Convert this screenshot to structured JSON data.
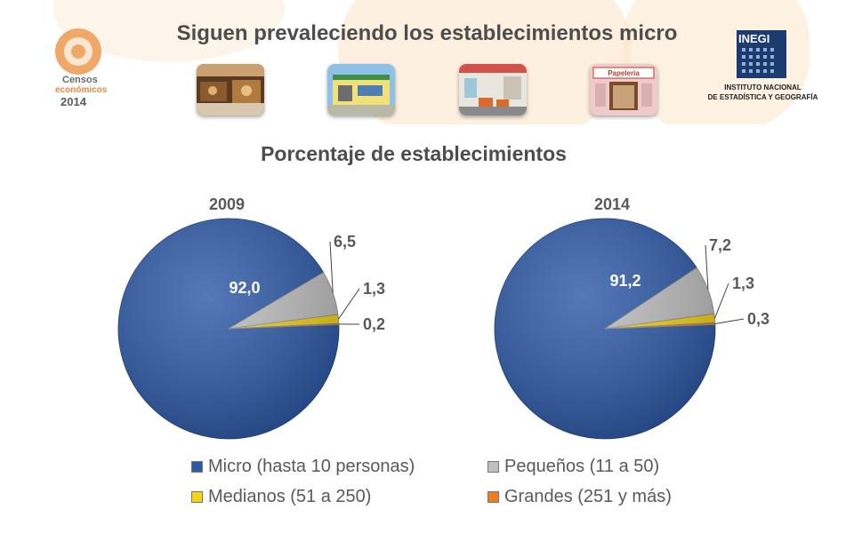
{
  "header": {
    "title": "Siguen prevaleciendo los establecimientos micro"
  },
  "logos": {
    "censos": {
      "line1": "Censos",
      "line2": "económicos",
      "line3": "2014"
    },
    "inegi": {
      "name": "INEGI",
      "line1": "INSTITUTO NACIONAL",
      "line2": "DE ESTADÍSTICA Y GEOGRAFÍA"
    }
  },
  "photos": [
    {
      "sign": ""
    },
    {
      "sign": ""
    },
    {
      "sign": ""
    },
    {
      "sign": "Papeleria"
    }
  ],
  "subtitle": "Porcentaje de establecimientos",
  "colors": {
    "micro": "#2e5aa8",
    "pequenos": "#bfbfbf",
    "medianos": "#f2d316",
    "grandes": "#ee7c1e"
  },
  "chart_data": [
    {
      "type": "pie",
      "title": "2009",
      "categories": [
        "Micro (hasta 10 personas)",
        "Pequeños (11 a 50)",
        "Medianos (51 a 250)",
        "Grandes (251 y más)"
      ],
      "values": [
        92.0,
        6.5,
        1.3,
        0.2
      ],
      "labels": [
        "92,0",
        "6,5",
        "1,3",
        "0,2"
      ]
    },
    {
      "type": "pie",
      "title": "2014",
      "categories": [
        "Micro (hasta 10 personas)",
        "Pequeños (11 a 50)",
        "Medianos (51 a 250)",
        "Grandes (251 y más)"
      ],
      "values": [
        91.2,
        7.2,
        1.3,
        0.3
      ],
      "labels": [
        "91,2",
        "7,2",
        "1,3",
        "0,3"
      ]
    }
  ],
  "legend": {
    "items": [
      "Micro (hasta 10 personas)",
      "Pequeños (11 a 50)",
      "Medianos (51 a 250)",
      "Grandes (251 y más)"
    ]
  }
}
